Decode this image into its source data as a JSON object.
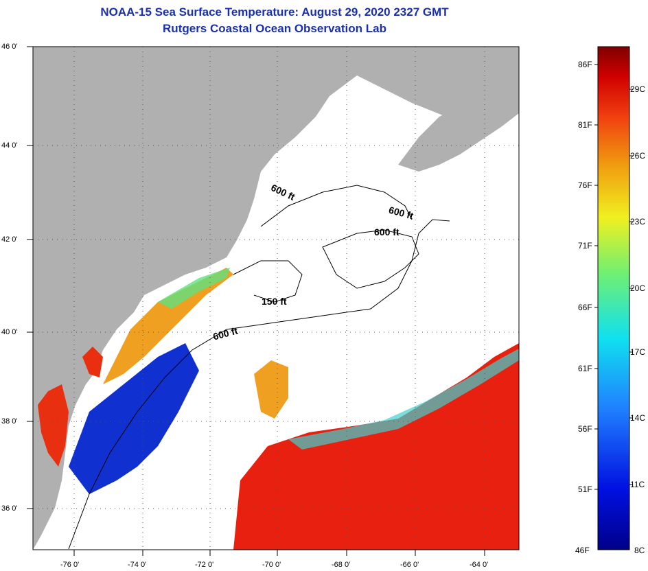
{
  "title": {
    "line1": "NOAA-15 Sea Surface Temperature:  August 29, 2020 2327 GMT",
    "line2": "Rutgers Coastal Ocean Observation Lab"
  },
  "map": {
    "lon_labels": [
      "-76 0'",
      "-74 0'",
      "-72 0'",
      "-70 0'",
      "-68 0'",
      "-66 0'",
      "-64 0'"
    ],
    "lat_labels": [
      "46 0'",
      "44 0'",
      "42 0'",
      "40 0'",
      "38 0'",
      "36 0'"
    ],
    "depth_labels": [
      "600 ft",
      "600 ft",
      "600 ft",
      "150 ft",
      "600 ft"
    ],
    "colors": {
      "land": "#b0b0b0",
      "cloud": "#ffffff",
      "warm": "#e82010",
      "cold": "#1030d0",
      "mid": "#f0a020"
    }
  },
  "colorbar": {
    "fahrenheit": [
      "86F",
      "81F",
      "76F",
      "71F",
      "66F",
      "61F",
      "56F",
      "51F",
      "46F"
    ],
    "celsius": [
      "29C",
      "26C",
      "23C",
      "20C",
      "17C",
      "14C",
      "11C",
      "8C"
    ]
  }
}
